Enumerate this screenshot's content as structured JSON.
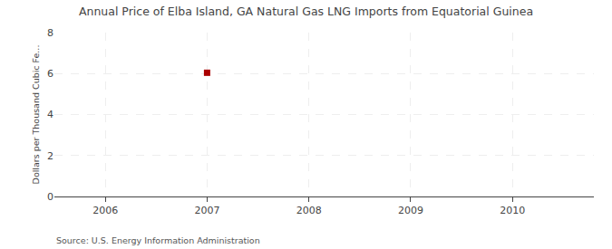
{
  "chart_data": {
    "type": "scatter",
    "title": "Annual Price of Elba Island, GA Natural Gas LNG Imports from Equatorial Guinea",
    "ylabel": "Dollars per Thousand Cubic Fe...",
    "annotation": "Source: U.S. Energy Information Administration",
    "x": [
      2007
    ],
    "values": [
      6.04
    ],
    "color": "#aa0000",
    "marker": "square",
    "xlim": [
      2005.5,
      2010.8
    ],
    "ylim": [
      0,
      8
    ],
    "xticks": [
      2006,
      2007,
      2008,
      2009,
      2010
    ],
    "yticks": [
      0,
      2,
      4,
      6,
      8
    ],
    "grid": true
  }
}
